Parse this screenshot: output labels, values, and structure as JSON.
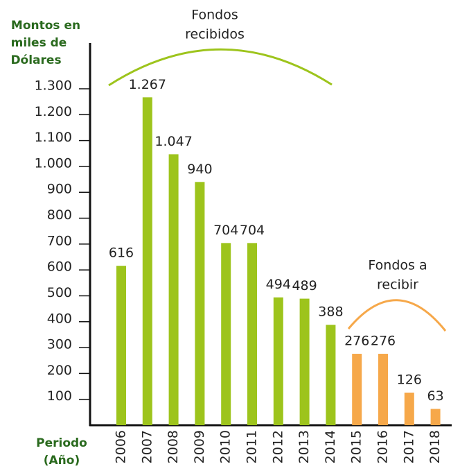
{
  "chart_data": {
    "type": "bar",
    "y_axis_title": [
      "Montos en",
      "miles de",
      "Dólares"
    ],
    "x_axis_title": [
      "Periodo",
      "(Año)"
    ],
    "annotations": [
      [
        "Fondos",
        "recibidos"
      ],
      [
        "Fondos a",
        "recibir"
      ]
    ],
    "categories": [
      "2006",
      "2007",
      "2008",
      "2009",
      "2010",
      "2011",
      "2012",
      "2013",
      "2014",
      "2015",
      "2016",
      "2017",
      "2018"
    ],
    "values": [
      616,
      1267,
      1047,
      940,
      704,
      704,
      494,
      489,
      388,
      276,
      276,
      126,
      63
    ],
    "value_labels": [
      "616",
      "1.267",
      "1.047",
      "940",
      "704",
      "704",
      "494",
      "489",
      "388",
      "276",
      "276",
      "126",
      "63"
    ],
    "colors": [
      "#9dc41c",
      "#9dc41c",
      "#9dc41c",
      "#9dc41c",
      "#9dc41c",
      "#9dc41c",
      "#9dc41c",
      "#9dc41c",
      "#9dc41c",
      "#f6a84a",
      "#f6a84a",
      "#f6a84a",
      "#f6a84a"
    ],
    "ylim": [
      0,
      1300
    ],
    "yticks": [
      100,
      200,
      300,
      400,
      500,
      600,
      700,
      800,
      900,
      {
        "value": 1000,
        "label": "1.000"
      },
      {
        "value": 1100,
        "label": "1.100"
      },
      {
        "value": 1200,
        "label": "1.200"
      },
      {
        "value": 1300,
        "label": "1.300"
      }
    ]
  }
}
